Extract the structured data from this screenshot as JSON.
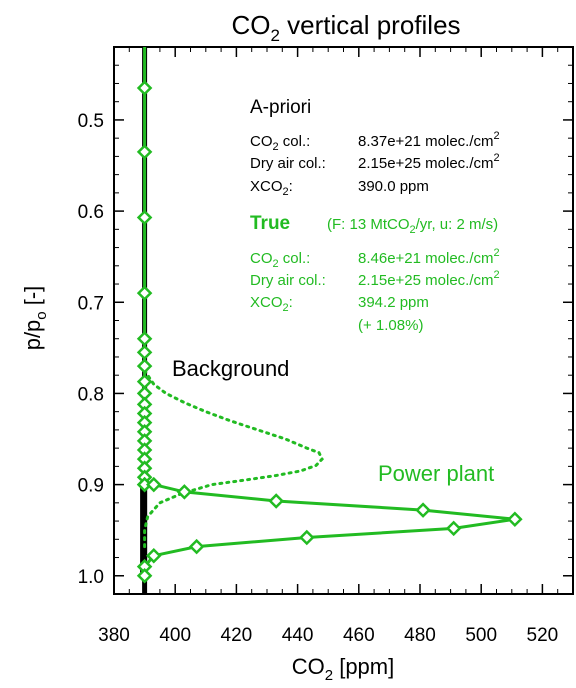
{
  "chart_data": {
    "type": "line",
    "title": {
      "main": "CO",
      "sub": "2",
      "rest": " vertical profiles"
    },
    "xlabel": {
      "main": "CO",
      "sub": "2",
      "rest": " [ppm]"
    },
    "ylabel": {
      "main": "p/p",
      "sub": "o",
      "rest": " [-]"
    },
    "xlim": [
      380,
      530
    ],
    "ylim": [
      1.02,
      0.42
    ],
    "y_reversed": true,
    "xticks": [
      "380",
      "400",
      "420",
      "440",
      "460",
      "480",
      "500",
      "520"
    ],
    "yticks": [
      "0.5",
      "0.6",
      "0.7",
      "0.8",
      "0.9",
      "1.0"
    ],
    "grid": false,
    "series": [
      {
        "style": "solid",
        "color": "#000000",
        "x": [
          390,
          390,
          390,
          390,
          390,
          390,
          390,
          390,
          390,
          390,
          390,
          390,
          390,
          390,
          390,
          390,
          390,
          390,
          390,
          390,
          390,
          390,
          390,
          390,
          390,
          390,
          390,
          390,
          390,
          390,
          390,
          390,
          390,
          390
        ],
        "y": [
          0.42,
          0.46,
          0.53,
          0.61,
          0.69,
          0.74,
          0.76,
          0.77,
          0.79,
          0.8,
          0.81,
          0.82,
          0.83,
          0.84,
          0.85,
          0.86,
          0.87,
          0.88,
          0.89,
          0.9,
          0.91,
          0.92,
          0.93,
          0.94,
          0.95,
          0.96,
          0.97,
          0.98,
          0.99,
          1.0,
          1.02,
          1.02,
          1.02,
          1.02
        ]
      },
      {
        "style": "solid-diamond",
        "color": "#22bb22",
        "x": [
          390,
          390,
          390,
          390,
          390,
          390,
          390,
          390,
          390,
          390,
          390,
          390,
          390,
          390,
          390,
          390,
          390,
          390,
          390,
          390,
          390,
          393,
          403,
          433,
          481,
          511,
          491,
          443,
          407,
          393,
          390,
          390
        ],
        "y": [
          0.42,
          0.465,
          0.535,
          0.607,
          0.69,
          0.74,
          0.755,
          0.77,
          0.787,
          0.8,
          0.812,
          0.822,
          0.832,
          0.842,
          0.852,
          0.862,
          0.872,
          0.882,
          0.892,
          0.9,
          0.9,
          0.9,
          0.908,
          0.918,
          0.928,
          0.938,
          0.948,
          0.958,
          0.968,
          0.978,
          0.99,
          1.0
        ]
      },
      {
        "style": "dotted",
        "color": "#22bb22",
        "x": [
          390,
          391,
          393,
          397,
          403,
          410,
          418,
          427,
          436,
          443,
          447,
          448,
          446,
          441,
          433,
          423,
          412,
          402,
          395,
          391,
          390,
          390
        ],
        "y": [
          0.775,
          0.78,
          0.79,
          0.8,
          0.81,
          0.82,
          0.83,
          0.84,
          0.85,
          0.86,
          0.865,
          0.872,
          0.879,
          0.885,
          0.89,
          0.895,
          0.9,
          0.91,
          0.92,
          0.935,
          0.95,
          0.97
        ]
      }
    ],
    "annotations": {
      "apriori": {
        "heading": "A-priori",
        "co2_label": {
          "main": "CO",
          "sub": "2",
          "rest": " col.:"
        },
        "co2_value": {
          "main": "8.37e+21 molec./cm",
          "sup": "2"
        },
        "dry_label": "Dry air col.:",
        "dry_value": {
          "main": "2.15e+25 molec./cm",
          "sup": "2"
        },
        "xco2_label": {
          "main": "XCO",
          "sub": "2",
          "rest": ":"
        },
        "xco2_value": "390.0 ppm"
      },
      "true": {
        "heading": "True",
        "note": {
          "pre": "(F: 13 MtCO",
          "sub": "2",
          "rest": "/yr, u: 2 m/s)"
        },
        "co2_label": {
          "main": "CO",
          "sub": "2",
          "rest": " col.:"
        },
        "co2_value": {
          "main": "8.46e+21 molec./cm",
          "sup": "2"
        },
        "dry_label": "Dry air col.:",
        "dry_value": {
          "main": "2.15e+25 molec./cm",
          "sup": "2"
        },
        "xco2_label": {
          "main": "XCO",
          "sub": "2",
          "rest": ":"
        },
        "xco2_value": "394.2 ppm",
        "xco2_change": "(+ 1.08%)"
      },
      "background": "Background",
      "power_plant": "Power plant"
    }
  },
  "colors": {
    "black": "#000000",
    "green": "#22bb22"
  }
}
